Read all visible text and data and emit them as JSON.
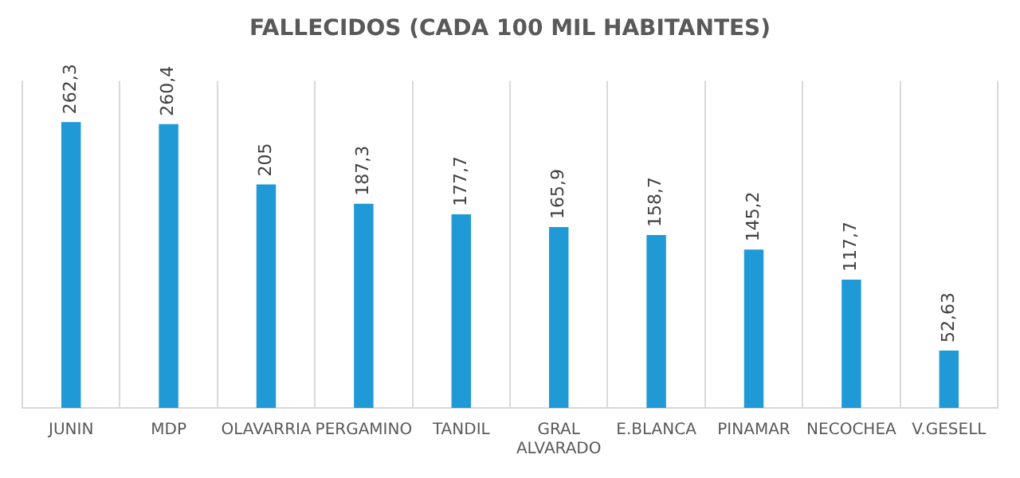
{
  "chart_data": {
    "type": "bar",
    "title": "FALLECIDOS (CADA 100 MIL HABITANTES)",
    "categories": [
      "JUNIN",
      "MDP",
      "OLAVARRIA",
      "PERGAMINO",
      "TANDIL",
      "GRAL ALVARADO",
      "E.BLANCA",
      "PINAMAR",
      "NECOCHEA",
      "V.GESELL"
    ],
    "values": [
      262.3,
      260.4,
      205,
      187.3,
      177.7,
      165.9,
      158.7,
      145.2,
      117.7,
      52.63
    ],
    "value_labels": [
      "262,3",
      "260,4",
      "205",
      "187,3",
      "177,7",
      "165,9",
      "158,7",
      "145,2",
      "117,7",
      "52,63"
    ],
    "color": "#1f9ad6",
    "grid": "x",
    "legend": false,
    "tick_labels": "x"
  }
}
